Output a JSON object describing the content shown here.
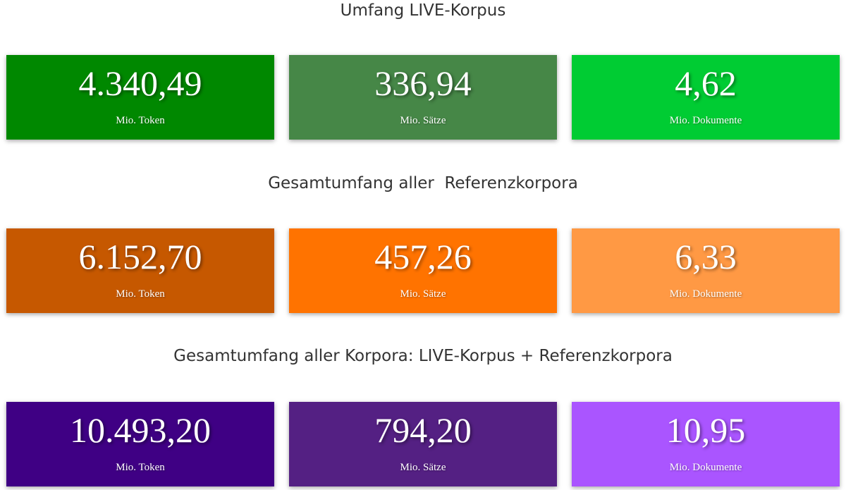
{
  "sections": [
    {
      "title": "Umfang LIVE-Korpus",
      "cards": [
        {
          "value": "4.340,49",
          "unit": "Mio. Token",
          "color": "#008800"
        },
        {
          "value": "336,94",
          "unit": "Mio. Sätze",
          "color": "#468747"
        },
        {
          "value": "4,62",
          "unit": "Mio. Dokumente",
          "color": "#00cc33"
        }
      ]
    },
    {
      "title": "Gesamtumfang aller  Referenzkorpora",
      "cards": [
        {
          "value": "6.152,70",
          "unit": "Mio. Token",
          "color": "#c65800"
        },
        {
          "value": "457,26",
          "unit": "Mio. Sätze",
          "color": "#ff7300"
        },
        {
          "value": "6,33",
          "unit": "Mio. Dokumente",
          "color": "#ff9944"
        }
      ]
    },
    {
      "title": "Gesamtumfang aller Korpora: LIVE-Korpus + Referenzkorpora",
      "cards": [
        {
          "value": "10.493,20",
          "unit": "Mio. Token",
          "color": "#3f0084"
        },
        {
          "value": "794,20",
          "unit": "Mio. Sätze",
          "color": "#542083"
        },
        {
          "value": "10,95",
          "unit": "Mio. Dokumente",
          "color": "#aa55ff"
        }
      ]
    }
  ]
}
